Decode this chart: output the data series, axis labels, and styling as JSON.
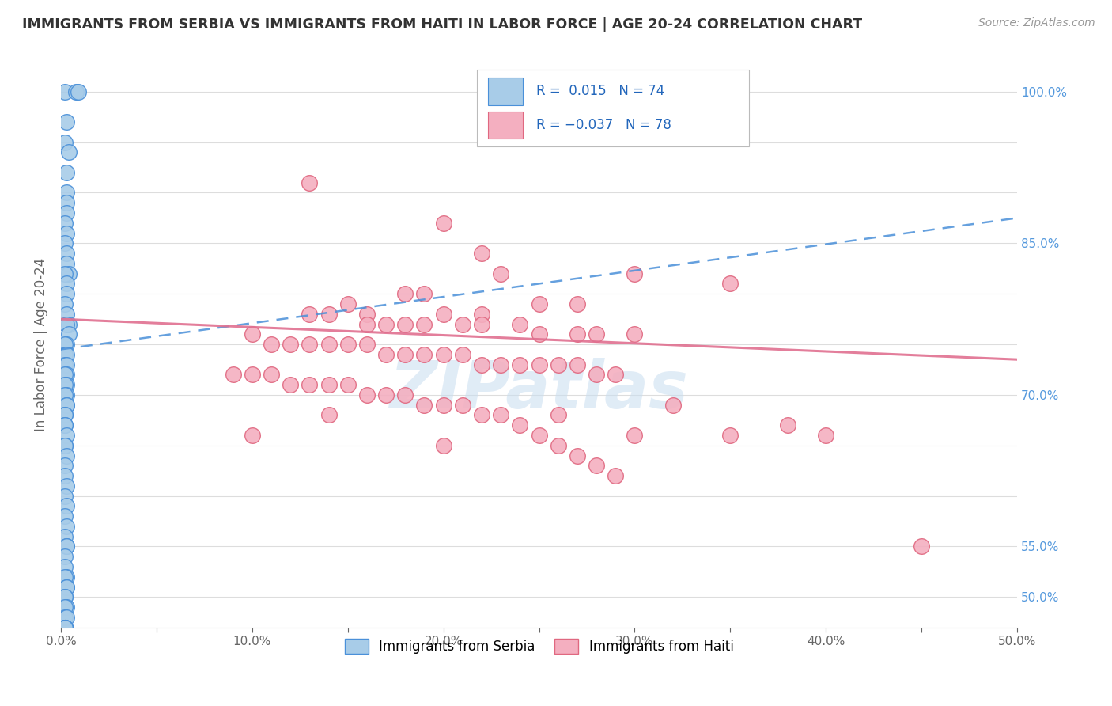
{
  "title": "IMMIGRANTS FROM SERBIA VS IMMIGRANTS FROM HAITI IN LABOR FORCE | AGE 20-24 CORRELATION CHART",
  "source": "Source: ZipAtlas.com",
  "ylabel": "In Labor Force | Age 20-24",
  "xlim": [
    0.0,
    0.5
  ],
  "ylim": [
    0.47,
    1.03
  ],
  "ytick_values": [
    0.5,
    0.55,
    0.6,
    0.65,
    0.7,
    0.75,
    0.8,
    0.85,
    0.9,
    0.95,
    1.0
  ],
  "xtick_labels": [
    "0.0%",
    "",
    "10.0%",
    "",
    "20.0%",
    "",
    "30.0%",
    "",
    "40.0%",
    "",
    "50.0%"
  ],
  "xtick_values": [
    0.0,
    0.05,
    0.1,
    0.15,
    0.2,
    0.25,
    0.3,
    0.35,
    0.4,
    0.45,
    0.5
  ],
  "serbia_color": "#a8cce8",
  "haiti_color": "#f4afc0",
  "serbia_edge_color": "#4a90d9",
  "haiti_edge_color": "#e06880",
  "trend_serbia_color": "#4a90d9",
  "trend_haiti_color": "#e07090",
  "R_serbia": 0.015,
  "N_serbia": 74,
  "R_haiti": -0.037,
  "N_haiti": 78,
  "watermark": "ZIPatlas",
  "background_color": "#ffffff",
  "grid_color": "#dddddd",
  "right_label_color": "#5599dd",
  "show_right": {
    "1.00": "100.0%",
    "0.85": "85.0%",
    "0.70": "70.0%",
    "0.55": "55.0%",
    "0.50": "50.0%"
  },
  "serbia_x": [
    0.002,
    0.008,
    0.009,
    0.003,
    0.002,
    0.004,
    0.003,
    0.003,
    0.003,
    0.003,
    0.002,
    0.003,
    0.002,
    0.003,
    0.003,
    0.004,
    0.002,
    0.003,
    0.003,
    0.002,
    0.003,
    0.004,
    0.003,
    0.004,
    0.003,
    0.002,
    0.002,
    0.003,
    0.002,
    0.003,
    0.003,
    0.002,
    0.003,
    0.002,
    0.003,
    0.002,
    0.003,
    0.003,
    0.002,
    0.002,
    0.002,
    0.002,
    0.003,
    0.002,
    0.002,
    0.003,
    0.002,
    0.002,
    0.003,
    0.002,
    0.003,
    0.002,
    0.003,
    0.002,
    0.003,
    0.003,
    0.002,
    0.002,
    0.003,
    0.002,
    0.003,
    0.003,
    0.002,
    0.002,
    0.003,
    0.002,
    0.002,
    0.003,
    0.002,
    0.002,
    0.002,
    0.002,
    0.002,
    0.002
  ],
  "serbia_y": [
    1.0,
    1.0,
    1.0,
    0.97,
    0.95,
    0.94,
    0.92,
    0.9,
    0.89,
    0.88,
    0.87,
    0.86,
    0.85,
    0.84,
    0.83,
    0.82,
    0.82,
    0.81,
    0.8,
    0.79,
    0.78,
    0.77,
    0.77,
    0.76,
    0.75,
    0.75,
    0.74,
    0.74,
    0.73,
    0.73,
    0.72,
    0.72,
    0.71,
    0.71,
    0.7,
    0.7,
    0.69,
    0.69,
    0.68,
    0.68,
    0.67,
    0.67,
    0.66,
    0.65,
    0.65,
    0.64,
    0.63,
    0.62,
    0.61,
    0.6,
    0.59,
    0.58,
    0.57,
    0.56,
    0.55,
    0.55,
    0.54,
    0.53,
    0.52,
    0.52,
    0.51,
    0.51,
    0.5,
    0.5,
    0.49,
    0.49,
    0.48,
    0.48,
    0.47,
    0.47,
    0.47,
    0.47,
    0.47,
    0.47
  ],
  "haiti_x": [
    0.13,
    0.2,
    0.22,
    0.23,
    0.3,
    0.35,
    0.18,
    0.19,
    0.25,
    0.27,
    0.15,
    0.16,
    0.2,
    0.22,
    0.13,
    0.14,
    0.16,
    0.17,
    0.18,
    0.19,
    0.21,
    0.22,
    0.24,
    0.25,
    0.27,
    0.28,
    0.3,
    0.1,
    0.11,
    0.12,
    0.13,
    0.14,
    0.15,
    0.16,
    0.17,
    0.18,
    0.19,
    0.2,
    0.21,
    0.22,
    0.23,
    0.24,
    0.25,
    0.26,
    0.27,
    0.28,
    0.29,
    0.09,
    0.1,
    0.11,
    0.12,
    0.13,
    0.14,
    0.15,
    0.16,
    0.17,
    0.18,
    0.19,
    0.2,
    0.21,
    0.22,
    0.23,
    0.24,
    0.25,
    0.26,
    0.27,
    0.28,
    0.29,
    0.3,
    0.35,
    0.4,
    0.45,
    0.38,
    0.2,
    0.14,
    0.32,
    0.1,
    0.26
  ],
  "haiti_y": [
    0.91,
    0.87,
    0.84,
    0.82,
    0.82,
    0.81,
    0.8,
    0.8,
    0.79,
    0.79,
    0.79,
    0.78,
    0.78,
    0.78,
    0.78,
    0.78,
    0.77,
    0.77,
    0.77,
    0.77,
    0.77,
    0.77,
    0.77,
    0.76,
    0.76,
    0.76,
    0.76,
    0.76,
    0.75,
    0.75,
    0.75,
    0.75,
    0.75,
    0.75,
    0.74,
    0.74,
    0.74,
    0.74,
    0.74,
    0.73,
    0.73,
    0.73,
    0.73,
    0.73,
    0.73,
    0.72,
    0.72,
    0.72,
    0.72,
    0.72,
    0.71,
    0.71,
    0.71,
    0.71,
    0.7,
    0.7,
    0.7,
    0.69,
    0.69,
    0.69,
    0.68,
    0.68,
    0.67,
    0.66,
    0.65,
    0.64,
    0.63,
    0.62,
    0.66,
    0.66,
    0.66,
    0.55,
    0.67,
    0.65,
    0.68,
    0.69,
    0.66,
    0.68
  ],
  "serbia_trend_x0": 0.0,
  "serbia_trend_y0": 0.745,
  "serbia_trend_x1": 0.5,
  "serbia_trend_y1": 0.875,
  "haiti_trend_x0": 0.0,
  "haiti_trend_y0": 0.775,
  "haiti_trend_x1": 0.5,
  "haiti_trend_y1": 0.735
}
